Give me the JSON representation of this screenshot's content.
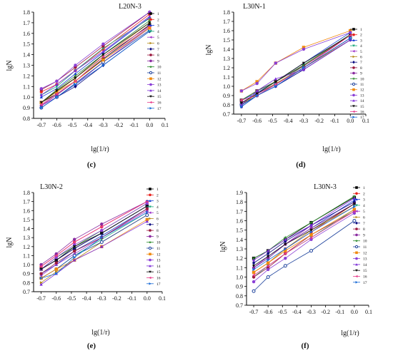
{
  "chart_data": [
    {
      "type": "line",
      "panel_label": "(c)",
      "title": "L20N-3",
      "xlabel": "lg(1/r)",
      "ylabel": "lgN",
      "xlim": [
        -0.75,
        0.1
      ],
      "ylim": [
        0.8,
        1.8
      ],
      "x_ticks": [
        "-0.7",
        "-0.6",
        "-0.5",
        "-0.4",
        "-0.3",
        "-0.2",
        "-0.1",
        "0.0",
        "0.1"
      ],
      "y_ticks": [
        "0.8",
        "0.9",
        "1.0",
        "1.1",
        "1.2",
        "1.3",
        "1.4",
        "1.5",
        "1.6",
        "1.7",
        "1.8"
      ],
      "x": [
        -0.7,
        -0.6,
        -0.48,
        -0.3,
        0.0
      ],
      "legend_position": "right",
      "series": [
        {
          "name": "1",
          "values": [
            0.95,
            1.03,
            1.15,
            1.36,
            1.68
          ]
        },
        {
          "name": "2",
          "values": [
            1.05,
            1.12,
            1.25,
            1.45,
            1.78
          ]
        },
        {
          "name": "3",
          "values": [
            1.0,
            1.08,
            1.22,
            1.42,
            1.75
          ]
        },
        {
          "name": "4",
          "values": [
            1.02,
            1.1,
            1.25,
            1.46,
            1.74
          ]
        },
        {
          "name": "5",
          "values": [
            0.92,
            1.0,
            1.12,
            1.33,
            1.65
          ]
        },
        {
          "name": "6",
          "values": [
            0.95,
            1.05,
            1.18,
            1.38,
            1.7
          ]
        },
        {
          "name": "7",
          "values": [
            0.9,
            1.0,
            1.1,
            1.3,
            1.62
          ]
        },
        {
          "name": "8",
          "values": [
            1.07,
            1.15,
            1.28,
            1.48,
            1.8
          ]
        },
        {
          "name": "9",
          "values": [
            0.92,
            1.02,
            1.15,
            1.35,
            1.66
          ]
        },
        {
          "name": "10",
          "values": [
            0.95,
            1.07,
            1.2,
            1.4,
            1.72
          ]
        },
        {
          "name": "11",
          "values": [
            0.9,
            1.0,
            1.13,
            1.33,
            1.63
          ]
        },
        {
          "name": "12",
          "values": [
            0.95,
            1.05,
            1.15,
            1.35,
            1.65
          ]
        },
        {
          "name": "13",
          "values": [
            1.08,
            1.15,
            1.3,
            1.5,
            1.8
          ]
        },
        {
          "name": "14",
          "values": [
            1.02,
            1.12,
            1.25,
            1.43,
            1.76
          ]
        },
        {
          "name": "15",
          "values": [
            0.95,
            1.06,
            1.18,
            1.4,
            1.7
          ]
        },
        {
          "name": "16",
          "values": [
            0.93,
            1.03,
            1.15,
            1.38,
            1.67
          ]
        },
        {
          "name": "17",
          "values": [
            0.9,
            1.0,
            1.12,
            1.3,
            1.62
          ]
        }
      ]
    },
    {
      "type": "line",
      "panel_label": "(d)",
      "title": "L30N-1",
      "xlabel": "lg(1/r)",
      "ylabel": "lgN",
      "xlim": [
        -0.75,
        0.1
      ],
      "ylim": [
        0.7,
        1.8
      ],
      "x_ticks": [
        "-0.7",
        "-0.6",
        "-0.5",
        "-0.4",
        "-0.3",
        "-0.2",
        "-0.1",
        "0.0",
        "0.1"
      ],
      "y_ticks": [
        "0.7",
        "0.8",
        "0.9",
        "1.0",
        "1.1",
        "1.2",
        "1.3",
        "1.4",
        "1.5",
        "1.6",
        "1.7",
        "1.8"
      ],
      "x": [
        -0.7,
        -0.6,
        -0.48,
        -0.3,
        0.0
      ],
      "legend_position": "right",
      "series": [
        {
          "name": "1",
          "values": [
            0.85,
            0.95,
            1.05,
            1.22,
            1.55
          ]
        },
        {
          "name": "2",
          "values": [
            0.82,
            0.92,
            1.02,
            1.2,
            1.52
          ]
        },
        {
          "name": "3",
          "values": [
            0.85,
            0.93,
            1.05,
            1.25,
            1.58
          ]
        },
        {
          "name": "4",
          "values": [
            0.8,
            0.9,
            1.02,
            1.22,
            1.55
          ]
        },
        {
          "name": "5",
          "values": [
            0.78,
            0.9,
            1.0,
            1.2,
            1.52
          ]
        },
        {
          "name": "6",
          "values": [
            0.8,
            0.92,
            1.03,
            1.2,
            1.5
          ]
        },
        {
          "name": "7",
          "values": [
            0.78,
            0.9,
            1.0,
            1.18,
            1.5
          ]
        },
        {
          "name": "8",
          "values": [
            0.85,
            0.95,
            1.05,
            1.22,
            1.55
          ]
        },
        {
          "name": "9",
          "values": [
            0.82,
            0.92,
            1.02,
            1.2,
            1.52
          ]
        },
        {
          "name": "10",
          "values": [
            0.85,
            0.95,
            1.05,
            1.23,
            1.56
          ]
        },
        {
          "name": "11",
          "values": [
            0.8,
            0.9,
            1.02,
            1.2,
            1.52
          ]
        },
        {
          "name": "12",
          "values": [
            0.95,
            1.05,
            1.25,
            1.42,
            1.6
          ]
        },
        {
          "name": "13",
          "values": [
            0.95,
            1.03,
            1.25,
            1.4,
            1.58
          ]
        },
        {
          "name": "14",
          "values": [
            0.8,
            0.95,
            1.08,
            1.18,
            1.5
          ]
        },
        {
          "name": "15",
          "values": [
            0.82,
            0.92,
            1.05,
            1.25,
            1.55
          ]
        },
        {
          "name": "16",
          "values": [
            0.85,
            0.9,
            1.02,
            1.2,
            1.55
          ]
        },
        {
          "name": "17",
          "values": [
            0.78,
            0.9,
            1.0,
            1.2,
            1.52
          ]
        }
      ]
    },
    {
      "type": "line",
      "panel_label": "(e)",
      "title": "L30N-2",
      "xlabel": "lg(1/r)",
      "ylabel": "lgN",
      "xlim": [
        -0.75,
        0.1
      ],
      "ylim": [
        0.7,
        1.8
      ],
      "x_ticks": [
        "-0.7",
        "-0.6",
        "-0.5",
        "-0.4",
        "-0.3",
        "-0.2",
        "-0.1",
        "0.0",
        "0.1"
      ],
      "y_ticks": [
        "0.7",
        "0.8",
        "0.9",
        "1.0",
        "1.1",
        "1.2",
        "1.3",
        "1.4",
        "1.5",
        "1.6",
        "1.7",
        "1.8"
      ],
      "x": [
        -0.7,
        -0.6,
        -0.48,
        -0.3,
        0.0
      ],
      "legend_position": "right",
      "series": [
        {
          "name": "1",
          "values": [
            0.95,
            1.05,
            1.18,
            1.35,
            1.65
          ]
        },
        {
          "name": "2",
          "values": [
            0.98,
            1.1,
            1.25,
            1.42,
            1.7
          ]
        },
        {
          "name": "3",
          "values": [
            0.9,
            1.0,
            1.15,
            1.32,
            1.62
          ]
        },
        {
          "name": "4",
          "values": [
            0.85,
            0.95,
            1.1,
            1.28,
            1.58
          ]
        },
        {
          "name": "5",
          "values": [
            0.88,
            1.0,
            1.12,
            1.3,
            1.6
          ]
        },
        {
          "name": "6",
          "values": [
            0.8,
            0.92,
            1.05,
            1.25,
            1.55
          ]
        },
        {
          "name": "7",
          "values": [
            0.95,
            1.05,
            1.18,
            1.35,
            1.65
          ]
        },
        {
          "name": "8",
          "values": [
            0.9,
            1.02,
            1.15,
            1.3,
            1.62
          ]
        },
        {
          "name": "9",
          "values": [
            1.0,
            1.12,
            1.28,
            1.45,
            1.7
          ]
        },
        {
          "name": "10",
          "values": [
            0.95,
            1.08,
            1.2,
            1.38,
            1.68
          ]
        },
        {
          "name": "11",
          "values": [
            0.85,
            0.95,
            1.1,
            1.25,
            1.55
          ]
        },
        {
          "name": "12",
          "values": [
            0.85,
            0.95,
            1.05,
            1.2,
            1.5
          ]
        },
        {
          "name": "13",
          "values": [
            0.95,
            1.08,
            1.22,
            1.38,
            1.68
          ]
        },
        {
          "name": "14",
          "values": [
            0.78,
            0.9,
            1.05,
            1.2,
            1.48
          ]
        },
        {
          "name": "15",
          "values": [
            0.95,
            1.05,
            1.2,
            1.35,
            1.65
          ]
        },
        {
          "name": "16",
          "values": [
            0.98,
            1.1,
            1.25,
            1.42,
            1.7
          ]
        },
        {
          "name": "17",
          "values": [
            0.85,
            0.9,
            1.08,
            1.3,
            1.58
          ]
        }
      ]
    },
    {
      "type": "line",
      "panel_label": "(f)",
      "title": "L30N-3",
      "xlabel": "lg(1/r)",
      "ylabel": "lgN",
      "xlim": [
        -0.75,
        0.1
      ],
      "ylim": [
        0.7,
        1.9
      ],
      "x_ticks": [
        "-0.7",
        "-0.6",
        "-0.5",
        "-0.4",
        "-0.3",
        "-0.2",
        "-0.1",
        "0.0",
        "0.1"
      ],
      "y_ticks": [
        "0.7",
        "0.8",
        "0.9",
        "1.0",
        "1.1",
        "1.2",
        "1.3",
        "1.4",
        "1.5",
        "1.6",
        "1.7",
        "1.8",
        "1.9"
      ],
      "x": [
        -0.7,
        -0.6,
        -0.48,
        -0.3,
        0.0
      ],
      "legend_position": "right",
      "series": [
        {
          "name": "1",
          "values": [
            1.2,
            1.28,
            1.4,
            1.58,
            1.85
          ]
        },
        {
          "name": "2",
          "values": [
            1.05,
            1.15,
            1.3,
            1.48,
            1.78
          ]
        },
        {
          "name": "3",
          "values": [
            1.1,
            1.2,
            1.35,
            1.52,
            1.82
          ]
        },
        {
          "name": "4",
          "values": [
            1.0,
            1.12,
            1.25,
            1.42,
            1.72
          ]
        },
        {
          "name": "5",
          "values": [
            1.1,
            1.22,
            1.35,
            1.55,
            1.8
          ]
        },
        {
          "name": "6",
          "values": [
            1.05,
            1.15,
            1.3,
            1.5,
            1.75
          ]
        },
        {
          "name": "7",
          "values": [
            1.15,
            1.25,
            1.38,
            1.55,
            1.8
          ]
        },
        {
          "name": "8",
          "values": [
            1.0,
            1.1,
            1.25,
            1.45,
            1.7
          ]
        },
        {
          "name": "9",
          "values": [
            1.1,
            1.2,
            1.35,
            1.52,
            1.78
          ]
        },
        {
          "name": "10",
          "values": [
            1.2,
            1.28,
            1.42,
            1.58,
            1.86
          ]
        },
        {
          "name": "11",
          "values": [
            0.85,
            1.0,
            1.12,
            1.28,
            1.6
          ]
        },
        {
          "name": "12",
          "values": [
            1.05,
            1.15,
            1.28,
            1.45,
            1.72
          ]
        },
        {
          "name": "13",
          "values": [
            0.95,
            1.08,
            1.2,
            1.4,
            1.68
          ]
        },
        {
          "name": "14",
          "values": [
            1.18,
            1.28,
            1.4,
            1.55,
            1.84
          ]
        },
        {
          "name": "15",
          "values": [
            1.12,
            1.22,
            1.35,
            1.5,
            1.78
          ]
        },
        {
          "name": "16",
          "values": [
            1.02,
            1.12,
            1.25,
            1.42,
            1.7
          ]
        },
        {
          "name": "17",
          "values": [
            1.08,
            1.18,
            1.3,
            1.48,
            1.75
          ]
        }
      ]
    }
  ],
  "series_styles": [
    {
      "color": "#000000",
      "marker": "square"
    },
    {
      "color": "#e8231f",
      "marker": "circle"
    },
    {
      "color": "#1a3fd6",
      "marker": "triangle"
    },
    {
      "color": "#1aa87a",
      "marker": "triangle-down"
    },
    {
      "color": "#9b2fc9",
      "marker": "triangle-left"
    },
    {
      "color": "#b58a18",
      "marker": "triangle-right"
    },
    {
      "color": "#0a0a80",
      "marker": "diamond"
    },
    {
      "color": "#9b1a3f",
      "marker": "circle"
    },
    {
      "color": "#8a2ba0",
      "marker": "circle"
    },
    {
      "color": "#2a8a2a",
      "marker": "star"
    },
    {
      "color": "#1a3f9b",
      "marker": "circle-open"
    },
    {
      "color": "#f08a10",
      "marker": "square"
    },
    {
      "color": "#8a3fd6",
      "marker": "circle"
    },
    {
      "color": "#7a2bd6",
      "marker": "triangle"
    },
    {
      "color": "#111111",
      "marker": "triangle-down"
    },
    {
      "color": "#e83a8a",
      "marker": "triangle-left"
    },
    {
      "color": "#1a6bd6",
      "marker": "triangle-right"
    }
  ]
}
